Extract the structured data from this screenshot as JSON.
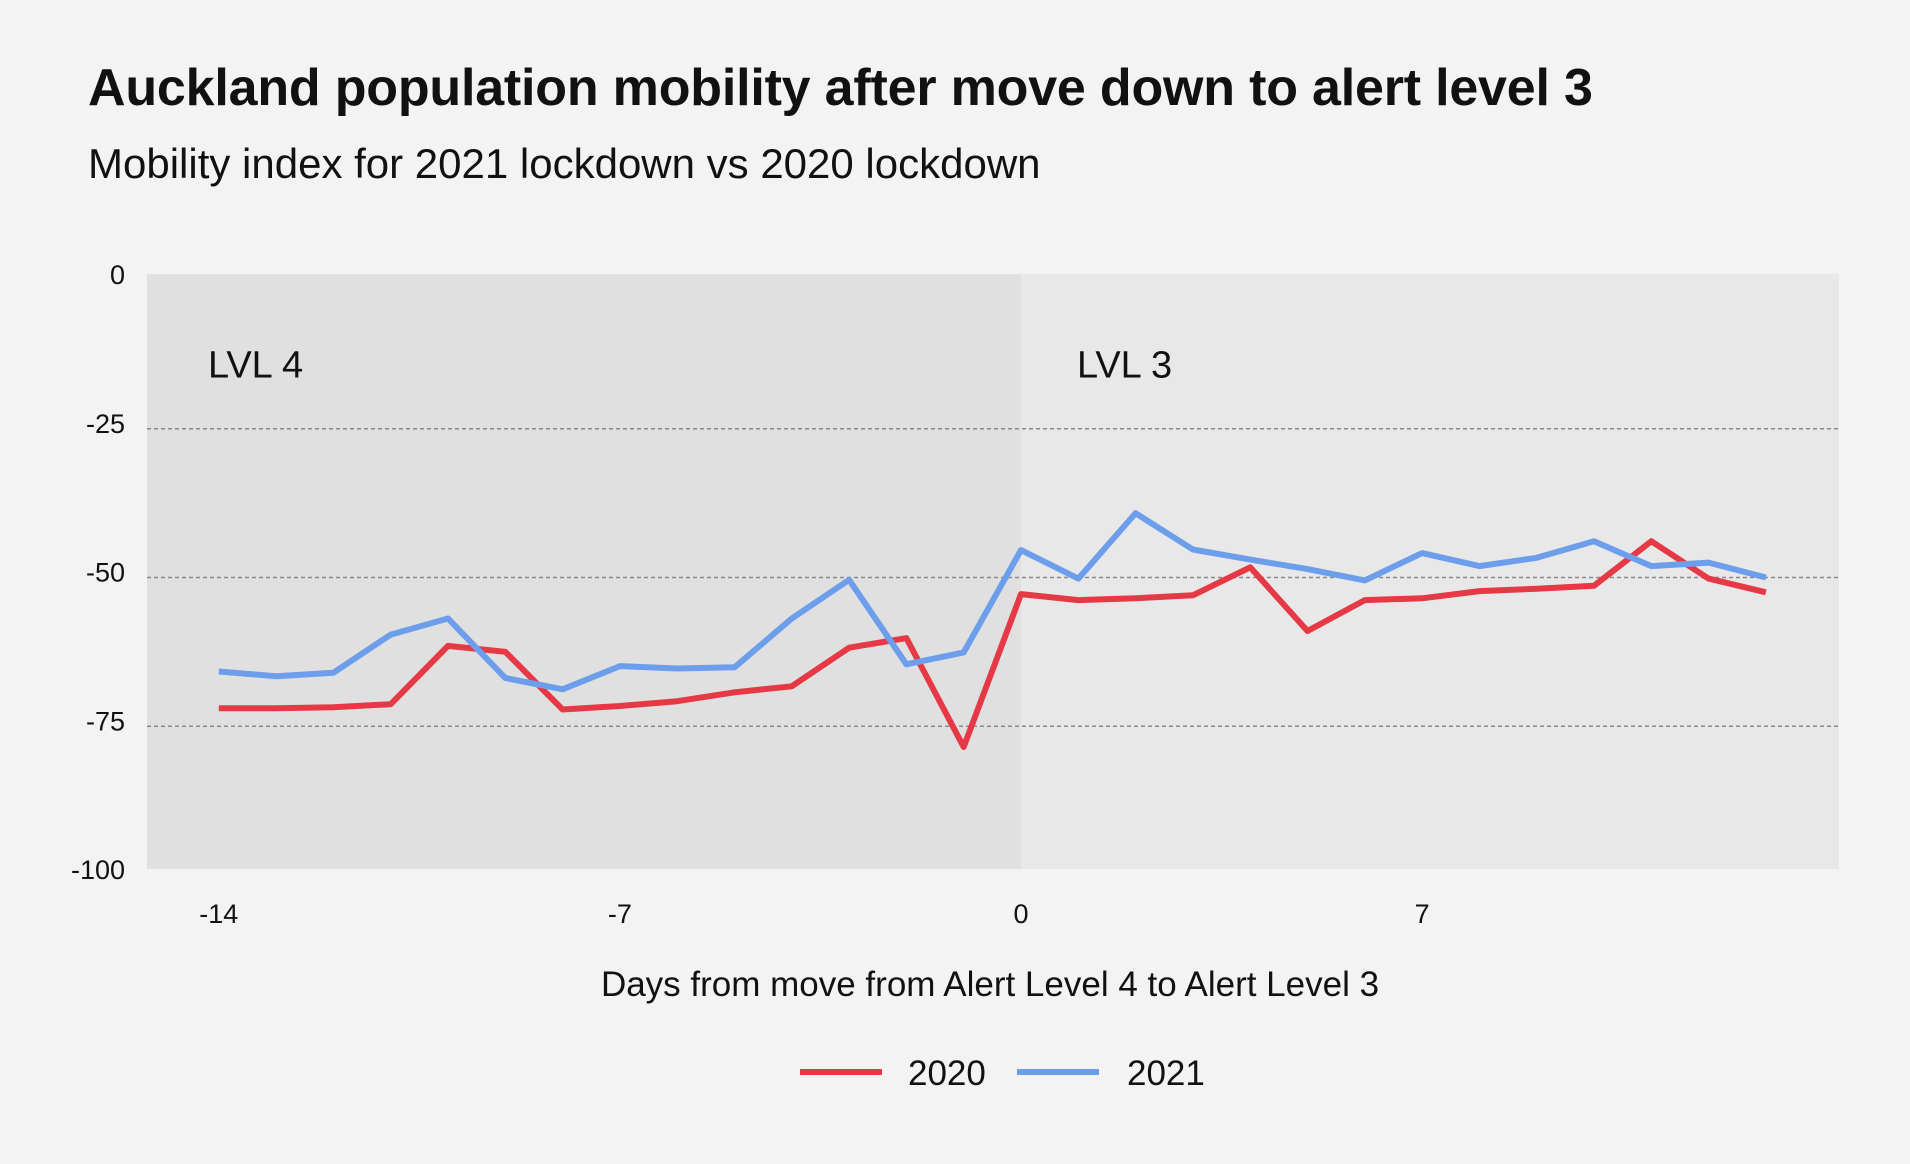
{
  "header": {
    "title": "Auckland population mobility after move down to alert level 3",
    "subtitle": "Mobility index for 2021 lockdown vs 2020 lockdown"
  },
  "chart_data": {
    "type": "line",
    "title": "Auckland population mobility after move down to alert level 3",
    "subtitle": "Mobility index for 2021 lockdown vs 2020 lockdown",
    "xlabel": "Days from move from Alert Level 4 to Alert Level 3",
    "ylabel": "",
    "xlim": [
      -14,
      13
    ],
    "ylim": [
      -100,
      0
    ],
    "x_ticks": [
      -14,
      -7,
      0,
      7
    ],
    "x_tick_labels": [
      "-14",
      "-7",
      "0",
      "7"
    ],
    "y_ticks": [
      0,
      -25,
      -50,
      -75,
      -100
    ],
    "y_tick_labels": [
      "0",
      "-25",
      "-50",
      "-75",
      "-100"
    ],
    "grid": "horizontal dashed at -25, -50, -75",
    "legend": "bottom-center",
    "regions": [
      {
        "label": "LVL 4",
        "x_start": -15.4,
        "x_end": 0,
        "color": "#e0e0e0"
      },
      {
        "label": "LVL 3",
        "x_start": 0,
        "x_end": 14.3,
        "color": "#e8e8e8"
      }
    ],
    "x": [
      -14,
      -13,
      -12,
      -11,
      -10,
      -9,
      -8,
      -7,
      -6,
      -5,
      -4,
      -3,
      -2,
      -1,
      0,
      1,
      2,
      3,
      4,
      5,
      6,
      7,
      8,
      9,
      10,
      11,
      12,
      13
    ],
    "series": [
      {
        "name": "2020",
        "color": "#e63946",
        "values": [
          -73,
          -73,
          -72.8,
          -72.3,
          -62.5,
          -63.5,
          -73.2,
          -72.6,
          -71.8,
          -70.3,
          -69.3,
          -62.8,
          -61.2,
          -79.5,
          -53.8,
          -54.8,
          -54.5,
          -54,
          -49.3,
          -60,
          -54.8,
          -54.5,
          -53.3,
          -52.9,
          -52.4,
          -44.9,
          -51.2,
          -53.5
        ]
      },
      {
        "name": "2021",
        "color": "#6d9eeb",
        "values": [
          -66.8,
          -67.6,
          -67,
          -60.6,
          -57.9,
          -67.9,
          -69.8,
          -65.9,
          -66.3,
          -66.1,
          -57.9,
          -51.4,
          -65.6,
          -63.6,
          -46.4,
          -51.2,
          -40.2,
          -46.3,
          -48,
          -49.6,
          -51.5,
          -46.9,
          -49.1,
          -47.7,
          -44.9,
          -49.1,
          -48.5,
          -51
        ]
      }
    ]
  }
}
